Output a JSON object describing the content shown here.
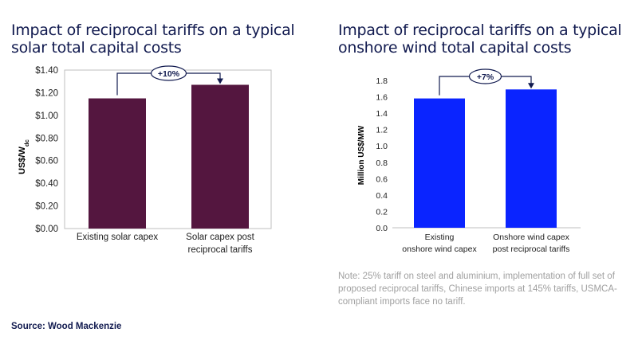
{
  "left_title": "Impact of reciprocal tariffs on a typical solar total capital costs",
  "right_title": "Impact of reciprocal tariffs on a typical onshore wind total capital costs",
  "note": "Note: 25% tariff on steel and aluminium, implementation of full set of proposed reciprocal tariffs, Chinese imports at 145% tariffs, USMCA-compliant imports face no tariff.",
  "source": "Source: Wood Mackenzie",
  "chart_data": [
    {
      "type": "bar",
      "title": "Impact of reciprocal tariffs on a typical solar total capital costs",
      "categories": [
        "Existing solar capex",
        "Solar capex post reciprocal tariffs"
      ],
      "values": [
        1.15,
        1.27
      ],
      "ylabel": "US$/W",
      "ylabel_sub": "dc",
      "ylim": [
        0,
        1.4
      ],
      "yticks": [
        0,
        0.2,
        0.4,
        0.6,
        0.8,
        1.0,
        1.2,
        1.4
      ],
      "ytick_labels": [
        "$0.00",
        "$0.20",
        "$0.40",
        "$0.60",
        "$0.80",
        "$1.00",
        "$1.20",
        "$1.40"
      ],
      "annotation": "+10%",
      "bar_color": "#54163f",
      "grid": false,
      "frame": true
    },
    {
      "type": "bar",
      "title": "Impact of reciprocal tariffs on a typical onshore wind total capital costs",
      "categories": [
        "Existing onshore wind capex",
        "Onshore wind capex post reciprocal tariffs"
      ],
      "values": [
        1.58,
        1.69
      ],
      "ylabel": "Million US$/MW",
      "ylim": [
        0,
        1.8
      ],
      "yticks": [
        0,
        0.2,
        0.4,
        0.6,
        0.8,
        1.0,
        1.2,
        1.4,
        1.6,
        1.8
      ],
      "ytick_labels": [
        "0.0",
        "0.2",
        "0.4",
        "0.6",
        "0.8",
        "1.0",
        "1.2",
        "1.4",
        "1.6",
        "1.8"
      ],
      "annotation": "+7%",
      "bar_color": "#0a24ff",
      "grid": false,
      "frame": false
    }
  ]
}
